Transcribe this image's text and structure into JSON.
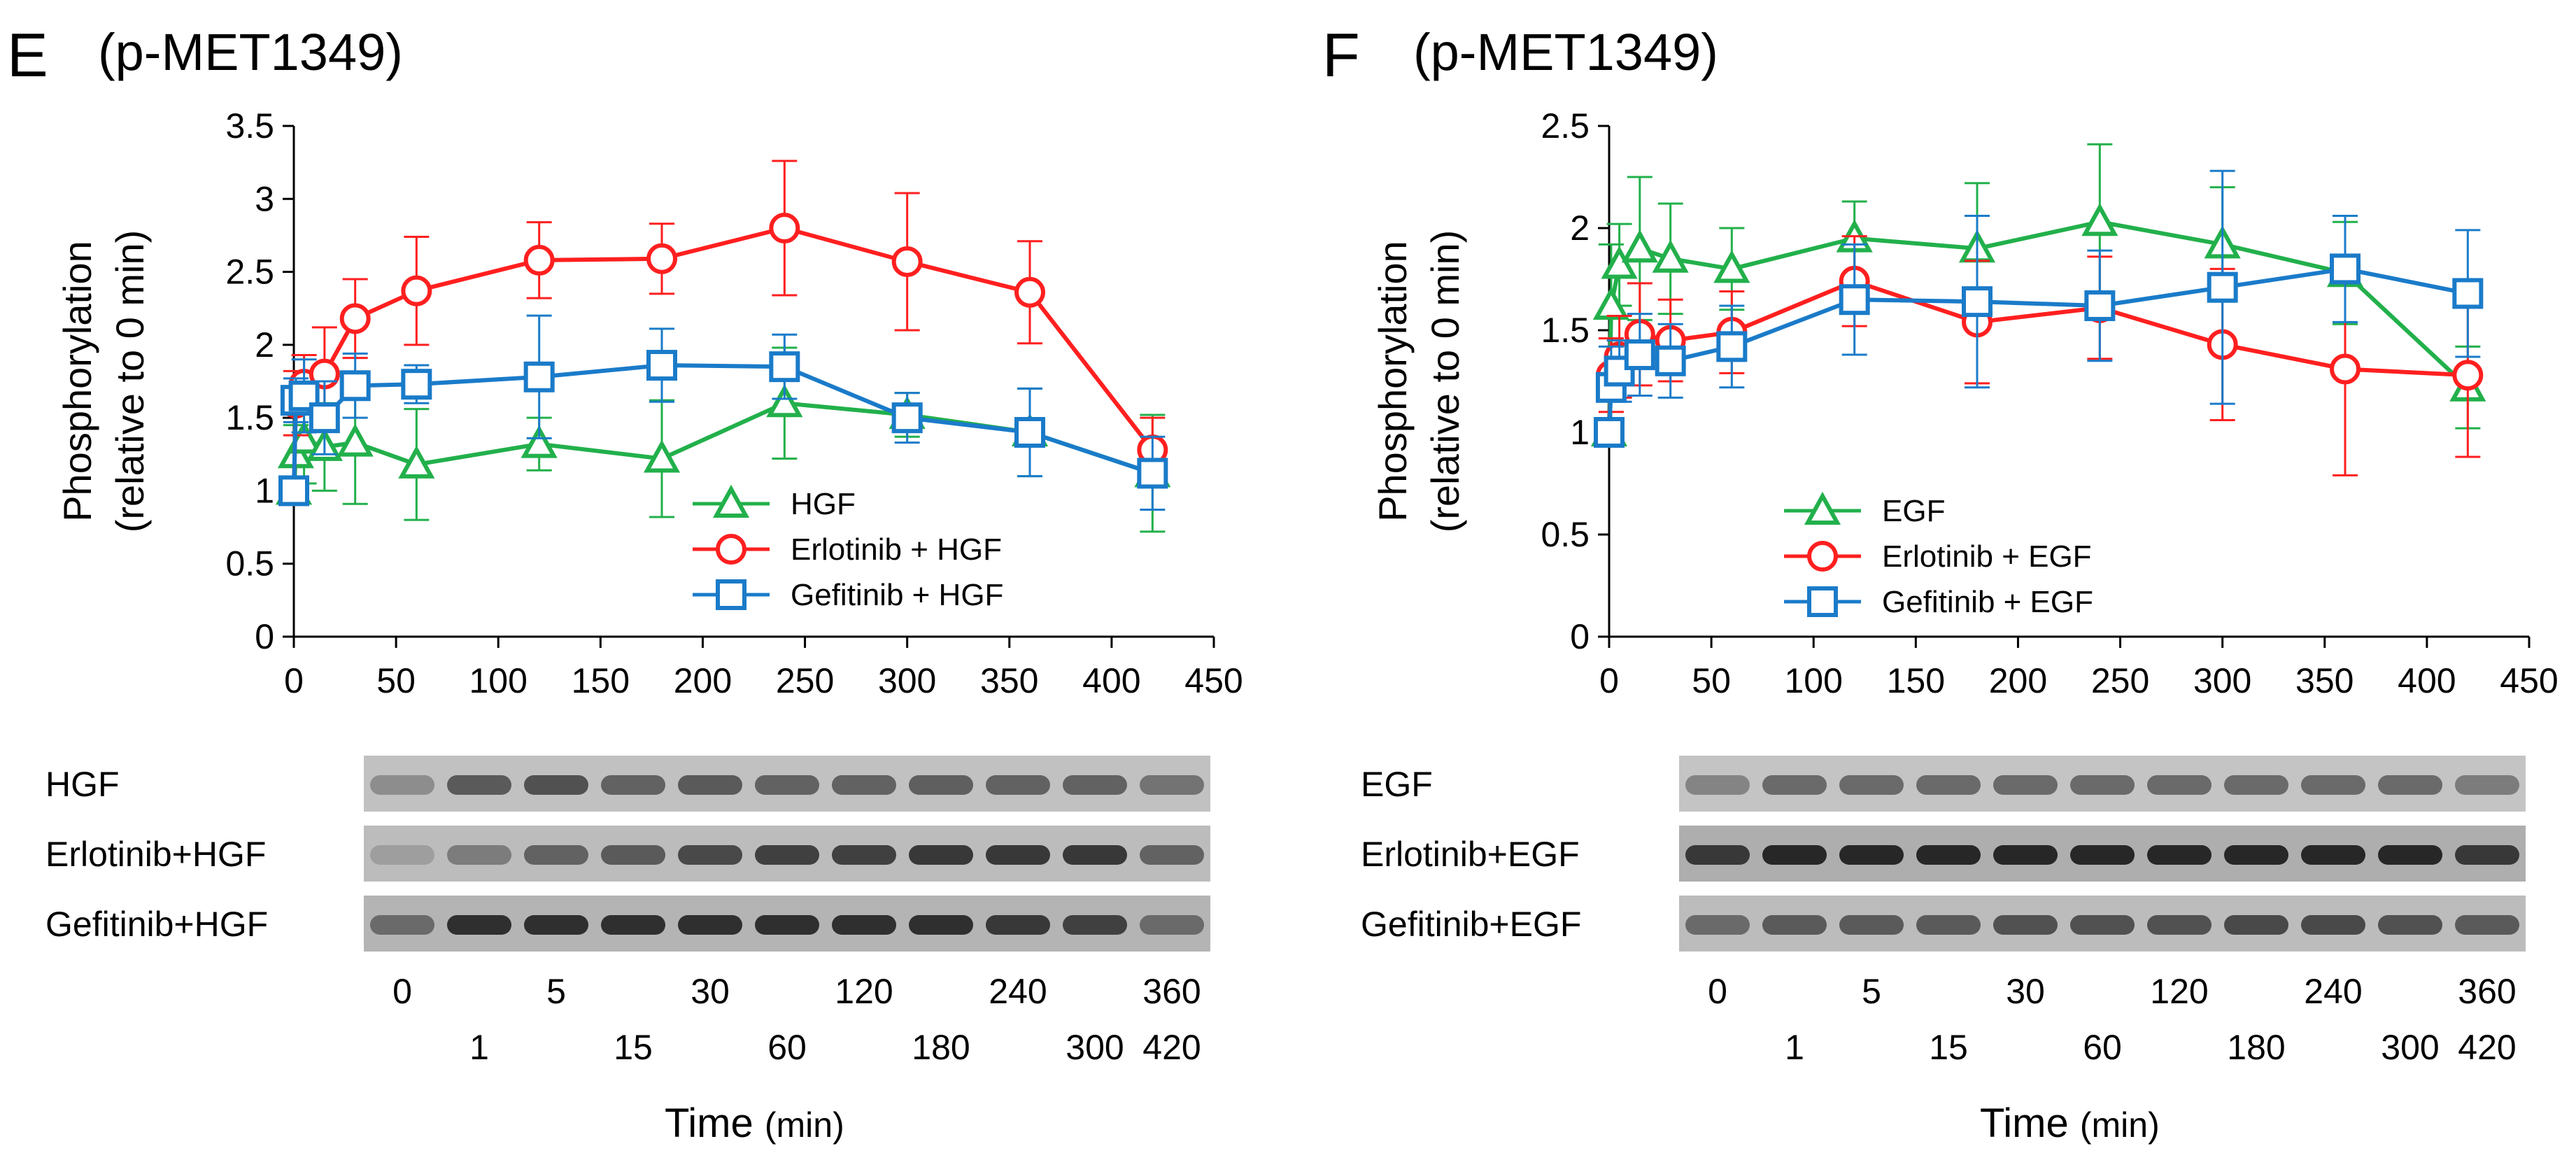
{
  "panels": [
    {
      "letter": "E",
      "title": "(p-MET1349)",
      "blots": [
        {
          "label": "HGF",
          "intensities": [
            0.35,
            0.65,
            0.7,
            0.6,
            0.65,
            0.6,
            0.6,
            0.62,
            0.6,
            0.6,
            0.5
          ]
        },
        {
          "label": "Erlotinib+HGF",
          "intensities": [
            0.25,
            0.45,
            0.6,
            0.65,
            0.75,
            0.8,
            0.8,
            0.85,
            0.85,
            0.85,
            0.6
          ]
        },
        {
          "label": "Gefitinib+HGF",
          "intensities": [
            0.55,
            0.9,
            0.9,
            0.9,
            0.9,
            0.9,
            0.9,
            0.9,
            0.85,
            0.8,
            0.55
          ]
        }
      ],
      "lanes_top": [
        "0",
        "5",
        "30",
        "120",
        "240",
        "360"
      ],
      "lanes_bottom": [
        "1",
        "15",
        "60",
        "180",
        "300",
        "420"
      ],
      "time_label": "Time",
      "time_unit": "(min)"
    },
    {
      "letter": "F",
      "title": "(p-MET1349)",
      "blots": [
        {
          "label": "EGF",
          "intensities": [
            0.4,
            0.55,
            0.55,
            0.55,
            0.55,
            0.55,
            0.55,
            0.55,
            0.55,
            0.55,
            0.45
          ]
        },
        {
          "label": "Erlotinib+EGF",
          "intensities": [
            0.85,
            0.95,
            0.95,
            0.95,
            0.95,
            0.95,
            0.95,
            0.95,
            0.95,
            0.95,
            0.85
          ]
        },
        {
          "label": "Gefitinib+EGF",
          "intensities": [
            0.55,
            0.65,
            0.65,
            0.65,
            0.7,
            0.7,
            0.7,
            0.75,
            0.75,
            0.7,
            0.65
          ]
        }
      ],
      "lanes_top": [
        "0",
        "5",
        "30",
        "120",
        "240",
        "360"
      ],
      "lanes_bottom": [
        "1",
        "15",
        "60",
        "180",
        "300",
        "420"
      ],
      "time_label": "Time",
      "time_unit": "(min)"
    }
  ],
  "chart_data": [
    {
      "type": "line",
      "title": "(p-MET1349)",
      "ylabel": "Phosphorylation",
      "ylabel2": "(relative to 0 min)",
      "xlabel": "Time (min)",
      "xlim": [
        0,
        450
      ],
      "ylim": [
        0,
        3.5
      ],
      "xticks": [
        0,
        50,
        100,
        150,
        200,
        250,
        300,
        350,
        400,
        450
      ],
      "yticks": [
        "0",
        "0.5",
        "1",
        "1.5",
        "2",
        "2.5",
        "3",
        "3.5"
      ],
      "legend_position": "center-right",
      "x": [
        0,
        1,
        5,
        15,
        30,
        60,
        120,
        180,
        240,
        300,
        360,
        420
      ],
      "series": [
        {
          "name": "HGF",
          "color": "#22b04b",
          "marker": "triangle",
          "values": [
            1.0,
            1.25,
            1.35,
            1.3,
            1.33,
            1.18,
            1.32,
            1.22,
            1.6,
            1.52,
            1.4,
            1.12
          ],
          "errors": [
            0.0,
            0.2,
            0.3,
            0.3,
            0.42,
            0.38,
            0.18,
            0.4,
            0.38,
            0.15,
            0.3,
            0.4
          ]
        },
        {
          "name": "Erlotinib + HGF",
          "color": "#ff1f1f",
          "marker": "circle",
          "values": [
            1.0,
            1.6,
            1.73,
            1.8,
            2.18,
            2.37,
            2.58,
            2.59,
            2.8,
            2.57,
            2.36,
            1.28
          ],
          "errors": [
            0.0,
            0.22,
            0.2,
            0.32,
            0.27,
            0.37,
            0.26,
            0.24,
            0.46,
            0.47,
            0.35,
            0.22
          ]
        },
        {
          "name": "Gefitinib + HGF",
          "color": "#1a7bc9",
          "marker": "square",
          "values": [
            1.0,
            1.62,
            1.65,
            1.5,
            1.72,
            1.73,
            1.78,
            1.86,
            1.85,
            1.5,
            1.4,
            1.12
          ],
          "errors": [
            0.0,
            0.15,
            0.25,
            0.25,
            0.22,
            0.13,
            0.42,
            0.25,
            0.22,
            0.17,
            0.3,
            0.25
          ]
        }
      ]
    },
    {
      "type": "line",
      "title": "(p-MET1349)",
      "ylabel": "Phosphorylation",
      "ylabel2": "(relative to 0 min)",
      "xlabel": "Time (min)",
      "xlim": [
        0,
        450
      ],
      "ylim": [
        0,
        2.5
      ],
      "xticks": [
        0,
        50,
        100,
        150,
        200,
        250,
        300,
        350,
        400,
        450
      ],
      "yticks": [
        "0",
        "0.5",
        "1",
        "1.5",
        "2",
        "2.5"
      ],
      "legend_position": "center-bottom",
      "x": [
        0,
        1,
        5,
        15,
        30,
        60,
        120,
        180,
        240,
        300,
        360,
        420
      ],
      "series": [
        {
          "name": "EGF",
          "color": "#22b04b",
          "marker": "triangle",
          "values": [
            1.0,
            1.62,
            1.82,
            1.9,
            1.85,
            1.8,
            1.95,
            1.9,
            2.03,
            1.92,
            1.78,
            1.22
          ],
          "errors": [
            0.0,
            0.3,
            0.2,
            0.35,
            0.27,
            0.2,
            0.18,
            0.32,
            0.38,
            0.28,
            0.25,
            0.2
          ]
        },
        {
          "name": "Erlotinib + EGF",
          "color": "#ff1f1f",
          "marker": "circle",
          "values": [
            1.0,
            1.28,
            1.37,
            1.48,
            1.45,
            1.49,
            1.74,
            1.54,
            1.61,
            1.43,
            1.31,
            1.28
          ],
          "errors": [
            0.0,
            0.18,
            0.2,
            0.25,
            0.2,
            0.2,
            0.22,
            0.3,
            0.25,
            0.37,
            0.52,
            0.4
          ]
        },
        {
          "name": "Gefitinib + EGF",
          "color": "#1a7bc9",
          "marker": "square",
          "values": [
            1.0,
            1.22,
            1.3,
            1.38,
            1.35,
            1.42,
            1.65,
            1.64,
            1.62,
            1.71,
            1.8,
            1.68
          ],
          "errors": [
            0.0,
            0.2,
            0.15,
            0.2,
            0.18,
            0.2,
            0.27,
            0.42,
            0.27,
            0.57,
            0.26,
            0.31
          ]
        }
      ]
    }
  ]
}
